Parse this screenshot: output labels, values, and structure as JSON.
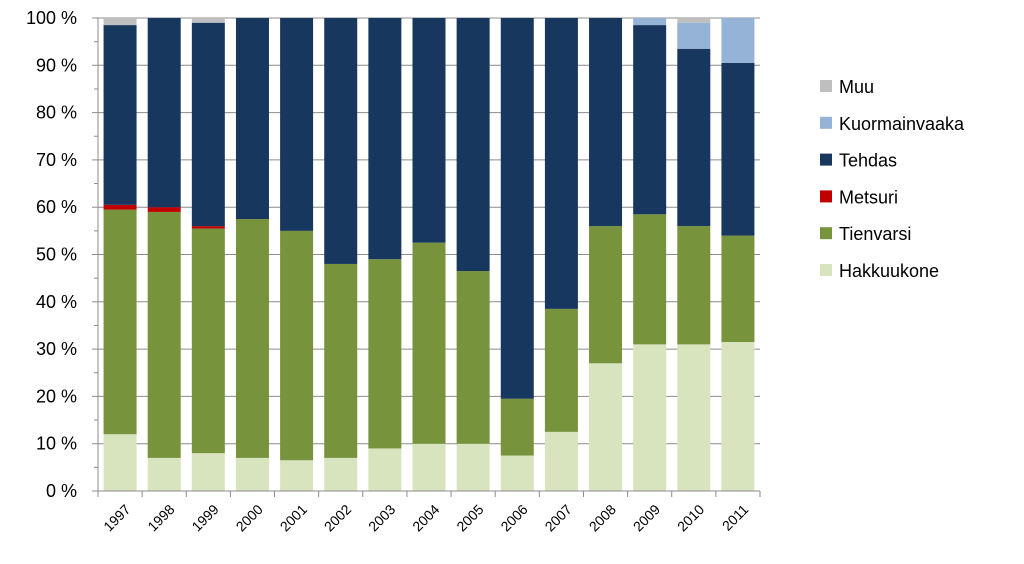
{
  "chart_data": {
    "type": "bar",
    "stacked": true,
    "percent_stacked": true,
    "categories": [
      "1997",
      "1998",
      "1999",
      "2000",
      "2001",
      "2002",
      "2003",
      "2004",
      "2005",
      "2006",
      "2007",
      "2008",
      "2009",
      "2010",
      "2011"
    ],
    "series": [
      {
        "name": "Hakkuukone",
        "color": "#d7e4bd",
        "values": [
          12,
          7,
          8,
          7,
          6.5,
          7,
          9,
          10,
          10,
          7.5,
          12.5,
          27,
          31,
          31,
          31.5
        ]
      },
      {
        "name": "Tienvarsi",
        "color": "#77933c",
        "values": [
          47.5,
          52,
          47.5,
          50.5,
          48.5,
          41,
          40,
          42.5,
          36.5,
          12,
          26,
          29,
          27.5,
          25,
          22.5
        ]
      },
      {
        "name": "Metsuri",
        "color": "#c00000",
        "values": [
          1,
          1,
          0.5,
          0,
          0,
          0,
          0,
          0,
          0,
          0,
          0,
          0,
          0,
          0,
          0
        ]
      },
      {
        "name": "Tehdas",
        "color": "#17375e",
        "values": [
          38,
          40,
          43,
          42.5,
          45,
          52,
          51,
          47.5,
          53.5,
          80.5,
          61.5,
          44,
          40,
          37.5,
          36.5
        ]
      },
      {
        "name": "Kuormainvaaka",
        "color": "#95b3d7",
        "values": [
          0,
          0,
          0,
          0,
          0,
          0,
          0,
          0,
          0,
          0,
          0,
          0,
          1.5,
          5.5,
          9.5
        ]
      },
      {
        "name": "Muu",
        "color": "#bfbfbf",
        "values": [
          1.5,
          0,
          1,
          0,
          0,
          0,
          0,
          0,
          0,
          0,
          0,
          0,
          0,
          1,
          0
        ]
      }
    ],
    "y_ticks": [
      "0 %",
      "10 %",
      "20 %",
      "30 %",
      "40 %",
      "50 %",
      "60 %",
      "70 %",
      "80 %",
      "90 %",
      "100 %"
    ],
    "ylim": [
      0,
      100
    ],
    "grid": true,
    "legend_position": "right",
    "legend_order": [
      "Muu",
      "Kuormainvaaka",
      "Tehdas",
      "Metsuri",
      "Tienvarsi",
      "Hakkuukone"
    ],
    "title": "",
    "xlabel": "",
    "ylabel": ""
  }
}
